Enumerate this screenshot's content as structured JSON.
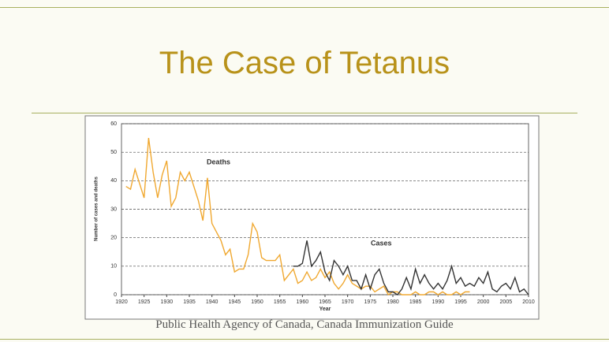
{
  "slide": {
    "title": "The Case of Tetanus",
    "caption": "Public Health Agency of Canada, Canada Immunization Guide"
  },
  "chart_data": {
    "type": "line",
    "xlabel": "Year",
    "ylabel": "Number of cases and deaths",
    "xlim": [
      1920,
      2010
    ],
    "xticks": [
      1920,
      1925,
      1930,
      1935,
      1940,
      1945,
      1950,
      1955,
      1960,
      1965,
      1970,
      1975,
      1980,
      1985,
      1990,
      1995,
      2000,
      2005,
      2010
    ],
    "ylim": [
      0,
      60
    ],
    "yticks": [
      0,
      10,
      20,
      30,
      40,
      50,
      60
    ],
    "grid": true,
    "series": [
      {
        "name": "Deaths",
        "color": "#f0a830",
        "x": [
          1921,
          1922,
          1923,
          1924,
          1925,
          1926,
          1927,
          1928,
          1929,
          1930,
          1931,
          1932,
          1933,
          1934,
          1935,
          1936,
          1937,
          1938,
          1939,
          1940,
          1941,
          1942,
          1943,
          1944,
          1945,
          1946,
          1947,
          1948,
          1949,
          1950,
          1951,
          1952,
          1953,
          1954,
          1955,
          1956,
          1957,
          1958,
          1959,
          1960,
          1961,
          1962,
          1963,
          1964,
          1965,
          1966,
          1967,
          1968,
          1969,
          1970,
          1971,
          1972,
          1973,
          1974,
          1975,
          1976,
          1977,
          1978,
          1979,
          1980,
          1981,
          1982,
          1983,
          1984,
          1985,
          1986,
          1987,
          1988,
          1989,
          1990,
          1991,
          1992,
          1993,
          1994,
          1995,
          1996,
          1997
        ],
        "values": [
          38,
          37,
          44,
          39,
          34,
          55,
          43,
          34,
          42,
          47,
          31,
          34,
          43,
          40,
          43,
          38,
          33,
          26,
          41,
          25,
          22,
          19,
          14,
          16,
          8,
          9,
          9,
          14,
          25,
          22,
          13,
          12,
          12,
          12,
          14,
          5,
          7,
          9,
          4,
          5,
          8,
          5,
          6,
          9,
          6,
          8,
          4,
          2,
          4,
          7,
          4,
          3,
          2,
          3,
          3,
          1,
          2,
          3,
          0,
          1,
          1,
          0,
          0,
          0,
          1,
          0,
          0,
          1,
          1,
          0,
          1,
          0,
          0,
          1,
          0,
          1,
          1
        ]
      },
      {
        "name": "Cases",
        "color": "#333333",
        "x": [
          1958,
          1959,
          1960,
          1961,
          1962,
          1963,
          1964,
          1965,
          1966,
          1967,
          1968,
          1969,
          1970,
          1971,
          1972,
          1973,
          1974,
          1975,
          1976,
          1977,
          1978,
          1979,
          1980,
          1981,
          1982,
          1983,
          1984,
          1985,
          1986,
          1987,
          1988,
          1989,
          1990,
          1991,
          1992,
          1993,
          1994,
          1995,
          1996,
          1997,
          1998,
          1999,
          2000,
          2001,
          2002,
          2003,
          2004,
          2005,
          2006,
          2007,
          2008,
          2009,
          2010
        ],
        "values": [
          10,
          10,
          11,
          19,
          10,
          12,
          15,
          8,
          5,
          12,
          10,
          7,
          10,
          5,
          5,
          2,
          7,
          2,
          7,
          9,
          4,
          1,
          1,
          0,
          2,
          6,
          2,
          9,
          4,
          7,
          4,
          2,
          4,
          2,
          5,
          10,
          4,
          6,
          3,
          4,
          3,
          6,
          4,
          8,
          2,
          1,
          3,
          4,
          2,
          6,
          1,
          2,
          0
        ]
      }
    ]
  }
}
